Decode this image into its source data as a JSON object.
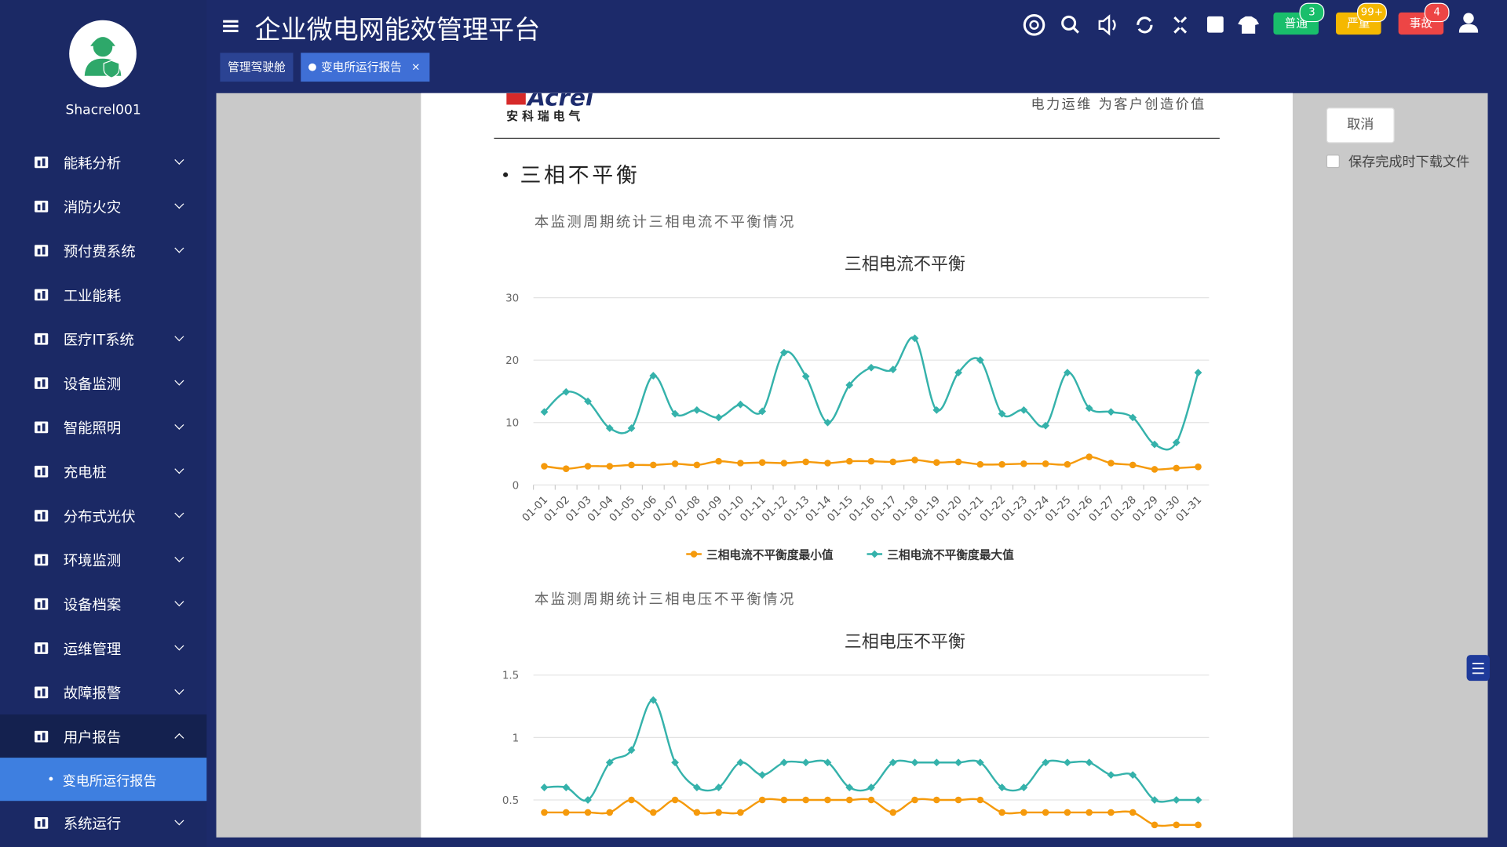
{
  "sidebar": {
    "user": "Shacrel001",
    "menu": [
      "能耗分析",
      "消防火灾",
      "预付费系统",
      "工业能耗",
      "医疗IT系统",
      "设备监测",
      "智能照明",
      "充电桩",
      "分布式光伏",
      "环境监测",
      "设备档案",
      "运维管理",
      "故障报警",
      "用户报告",
      "系统运行"
    ],
    "submenu": [
      "变电所运行报告"
    ]
  },
  "header": {
    "title": "企业微电网能效管理平台",
    "badges": [
      {
        "label": "普通",
        "count": 3,
        "color": "#19be6b"
      },
      {
        "label": "严重",
        "count": "99+",
        "color": "#f5b800"
      },
      {
        "label": "事故",
        "count": 4,
        "color": "#ed4545"
      }
    ]
  },
  "tabs": {
    "items": [
      "管理驾驶舱",
      "变电所运行报告"
    ],
    "close": "×"
  },
  "document": {
    "logo": "Acrel",
    "logo_sub": "安 科 瑞 电 气",
    "slogan": "电力运维 为客户创造价值",
    "section": "三相不平衡"
  },
  "actions": {
    "cancel": "取消",
    "save_download": "保存完成时下载文件"
  },
  "chart_data": [
    {
      "type": "line",
      "description": "本监测周期统计三相电流不平衡情况",
      "title": "三相电流不平衡",
      "categories": [
        "01-01",
        "01-02",
        "01-03",
        "01-04",
        "01-05",
        "01-06",
        "01-07",
        "01-08",
        "01-09",
        "01-10",
        "01-11",
        "01-12",
        "01-13",
        "01-14",
        "01-15",
        "01-16",
        "01-17",
        "01-18",
        "01-19",
        "01-20",
        "01-21",
        "01-22",
        "01-23",
        "01-24",
        "01-25",
        "01-26",
        "01-27",
        "01-28",
        "01-29",
        "01-30",
        "01-31"
      ],
      "series": [
        {
          "name": "三相电流不平衡度最小值",
          "color": "#f59a0c",
          "values": [
            3.0,
            2.6,
            3.0,
            3.0,
            3.2,
            3.2,
            3.4,
            3.2,
            3.8,
            3.5,
            3.6,
            3.5,
            3.7,
            3.5,
            3.8,
            3.8,
            3.7,
            4.0,
            3.6,
            3.7,
            3.3,
            3.3,
            3.4,
            3.4,
            3.3,
            4.5,
            3.5,
            3.2,
            2.5,
            2.7,
            2.9
          ]
        },
        {
          "name": "三相电流不平衡度最大值",
          "color": "#35b2ab",
          "values": [
            11.7,
            14.9,
            13.4,
            9.1,
            9.1,
            17.5,
            11.4,
            12.0,
            10.8,
            12.9,
            11.8,
            21.2,
            17.4,
            10.0,
            16.0,
            18.8,
            18.5,
            23.5,
            12.0,
            18.0,
            20.0,
            11.4,
            12.0,
            9.5,
            18.0,
            12.3,
            11.7,
            10.8,
            6.5,
            6.8,
            18.0
          ]
        }
      ],
      "ylim": [
        0,
        30
      ],
      "yticks": [
        0,
        10,
        20,
        30
      ],
      "grid": true
    },
    {
      "type": "line",
      "description": "本监测周期统计三相电压不平衡情况",
      "title": "三相电压不平衡",
      "series": [
        {
          "color": "#f59a0c",
          "values": [
            0.4,
            0.4,
            0.4,
            0.4,
            0.5,
            0.4,
            0.5,
            0.4,
            0.4,
            0.4,
            0.5,
            0.5,
            0.5,
            0.5,
            0.5,
            0.5,
            0.4,
            0.5,
            0.5,
            0.5,
            0.5,
            0.4,
            0.4,
            0.4,
            0.4,
            0.4,
            0.4,
            0.4,
            0.3,
            0.3,
            0.3
          ]
        },
        {
          "color": "#35b2ab",
          "values": [
            0.6,
            0.6,
            0.5,
            0.8,
            0.9,
            1.3,
            0.8,
            0.6,
            0.6,
            0.8,
            0.7,
            0.8,
            0.8,
            0.8,
            0.6,
            0.6,
            0.8,
            0.8,
            0.8,
            0.8,
            0.8,
            0.6,
            0.6,
            0.8,
            0.8,
            0.8,
            0.7,
            0.7,
            0.5,
            0.5,
            0.5
          ]
        }
      ],
      "ylim": [
        0,
        1.5
      ],
      "yticks": [
        0.5,
        1,
        1.5
      ],
      "grid": true
    }
  ]
}
